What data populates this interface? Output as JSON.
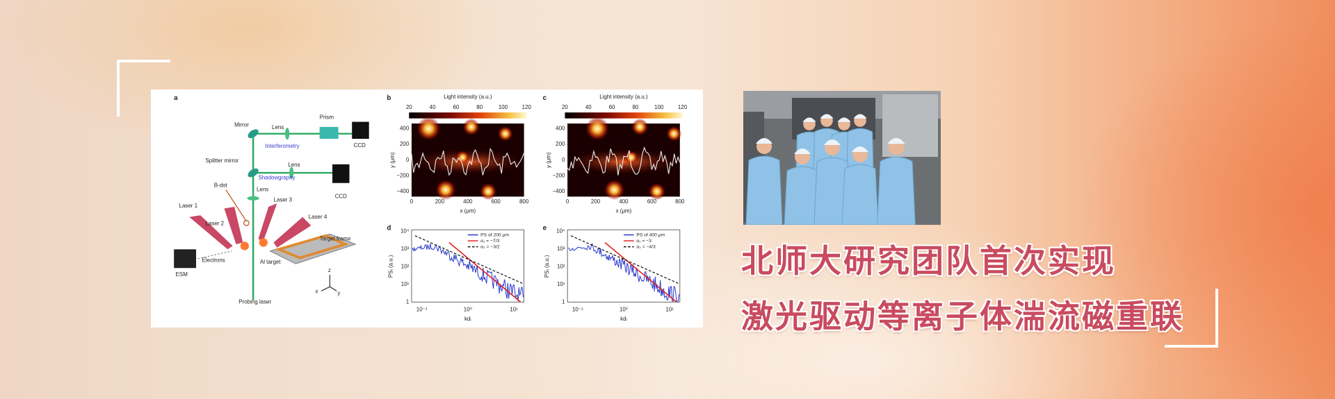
{
  "figure": {
    "panel_a": {
      "label": "a",
      "mirror": "Mirror",
      "lens_1": "Lens",
      "prism": "Prism",
      "ccd_1": "CCD",
      "interferometry": "Interferometry",
      "splitter_mirror": "Splitter mirror",
      "lens_2": "Lens",
      "shadowgraphy": "Shadowgraphy",
      "ccd_2": "CCD",
      "b_dot": "B-dot",
      "lens_3": "Lens",
      "laser_1": "Laser 1",
      "laser_2": "Laser 2",
      "laser_3": "Laser 3",
      "laser_4": "Laser 4",
      "target_frame": "Target frame",
      "electrons": "Electrons",
      "esm": "ESM",
      "al_target": "Al target",
      "probing_laser": "Probing laser",
      "axis_x": "x",
      "axis_y": "y",
      "axis_z": "z"
    },
    "maps": [
      {
        "label": "b",
        "colorbar_title": "Light intensity (a.u.)",
        "colorbar_ticks": [
          "20",
          "40",
          "60",
          "80",
          "100",
          "120"
        ],
        "y_label": "y (μm)",
        "y_ticks": [
          "400",
          "200",
          "0",
          "−200",
          "−400"
        ],
        "x_label": "x (μm)",
        "x_ticks": [
          "0",
          "200",
          "400",
          "600",
          "800"
        ]
      },
      {
        "label": "c",
        "colorbar_title": "Light intensity (a.u.)",
        "colorbar_ticks": [
          "20",
          "40",
          "60",
          "80",
          "100",
          "120"
        ],
        "y_label": "y (μm)",
        "y_ticks": [
          "400",
          "200",
          "0",
          "−200",
          "−400"
        ],
        "x_label": "x (μm)",
        "x_ticks": [
          "0",
          "200",
          "400",
          "600",
          "800"
        ]
      }
    ],
    "spectra": [
      {
        "label": "d",
        "y_label": "PSᵢ (a.u.)",
        "y_ticks": [
          "10⁴",
          "10³",
          "10²",
          "10¹",
          "1"
        ],
        "x_label": "kdᵢ",
        "x_ticks": [
          "10⁻¹",
          "10⁰",
          "10¹"
        ],
        "legend": [
          "PS of 200 μm",
          "α₁ = −7/3",
          "α₂ = −3/2"
        ]
      },
      {
        "label": "e",
        "y_label": "PSᵢ (a.u.)",
        "y_ticks": [
          "10⁴",
          "10³",
          "10²",
          "10¹",
          "1"
        ],
        "x_label": "kdᵢ",
        "x_ticks": [
          "10⁻¹",
          "10⁰",
          "10¹"
        ],
        "legend": [
          "PS of 400 μm",
          "α₁ = −3",
          "α₂ = −4/3"
        ]
      }
    ]
  },
  "headline": {
    "line1": "北师大研究团队首次实现",
    "line2": "激光驱动等离子体湍流磁重联"
  }
}
